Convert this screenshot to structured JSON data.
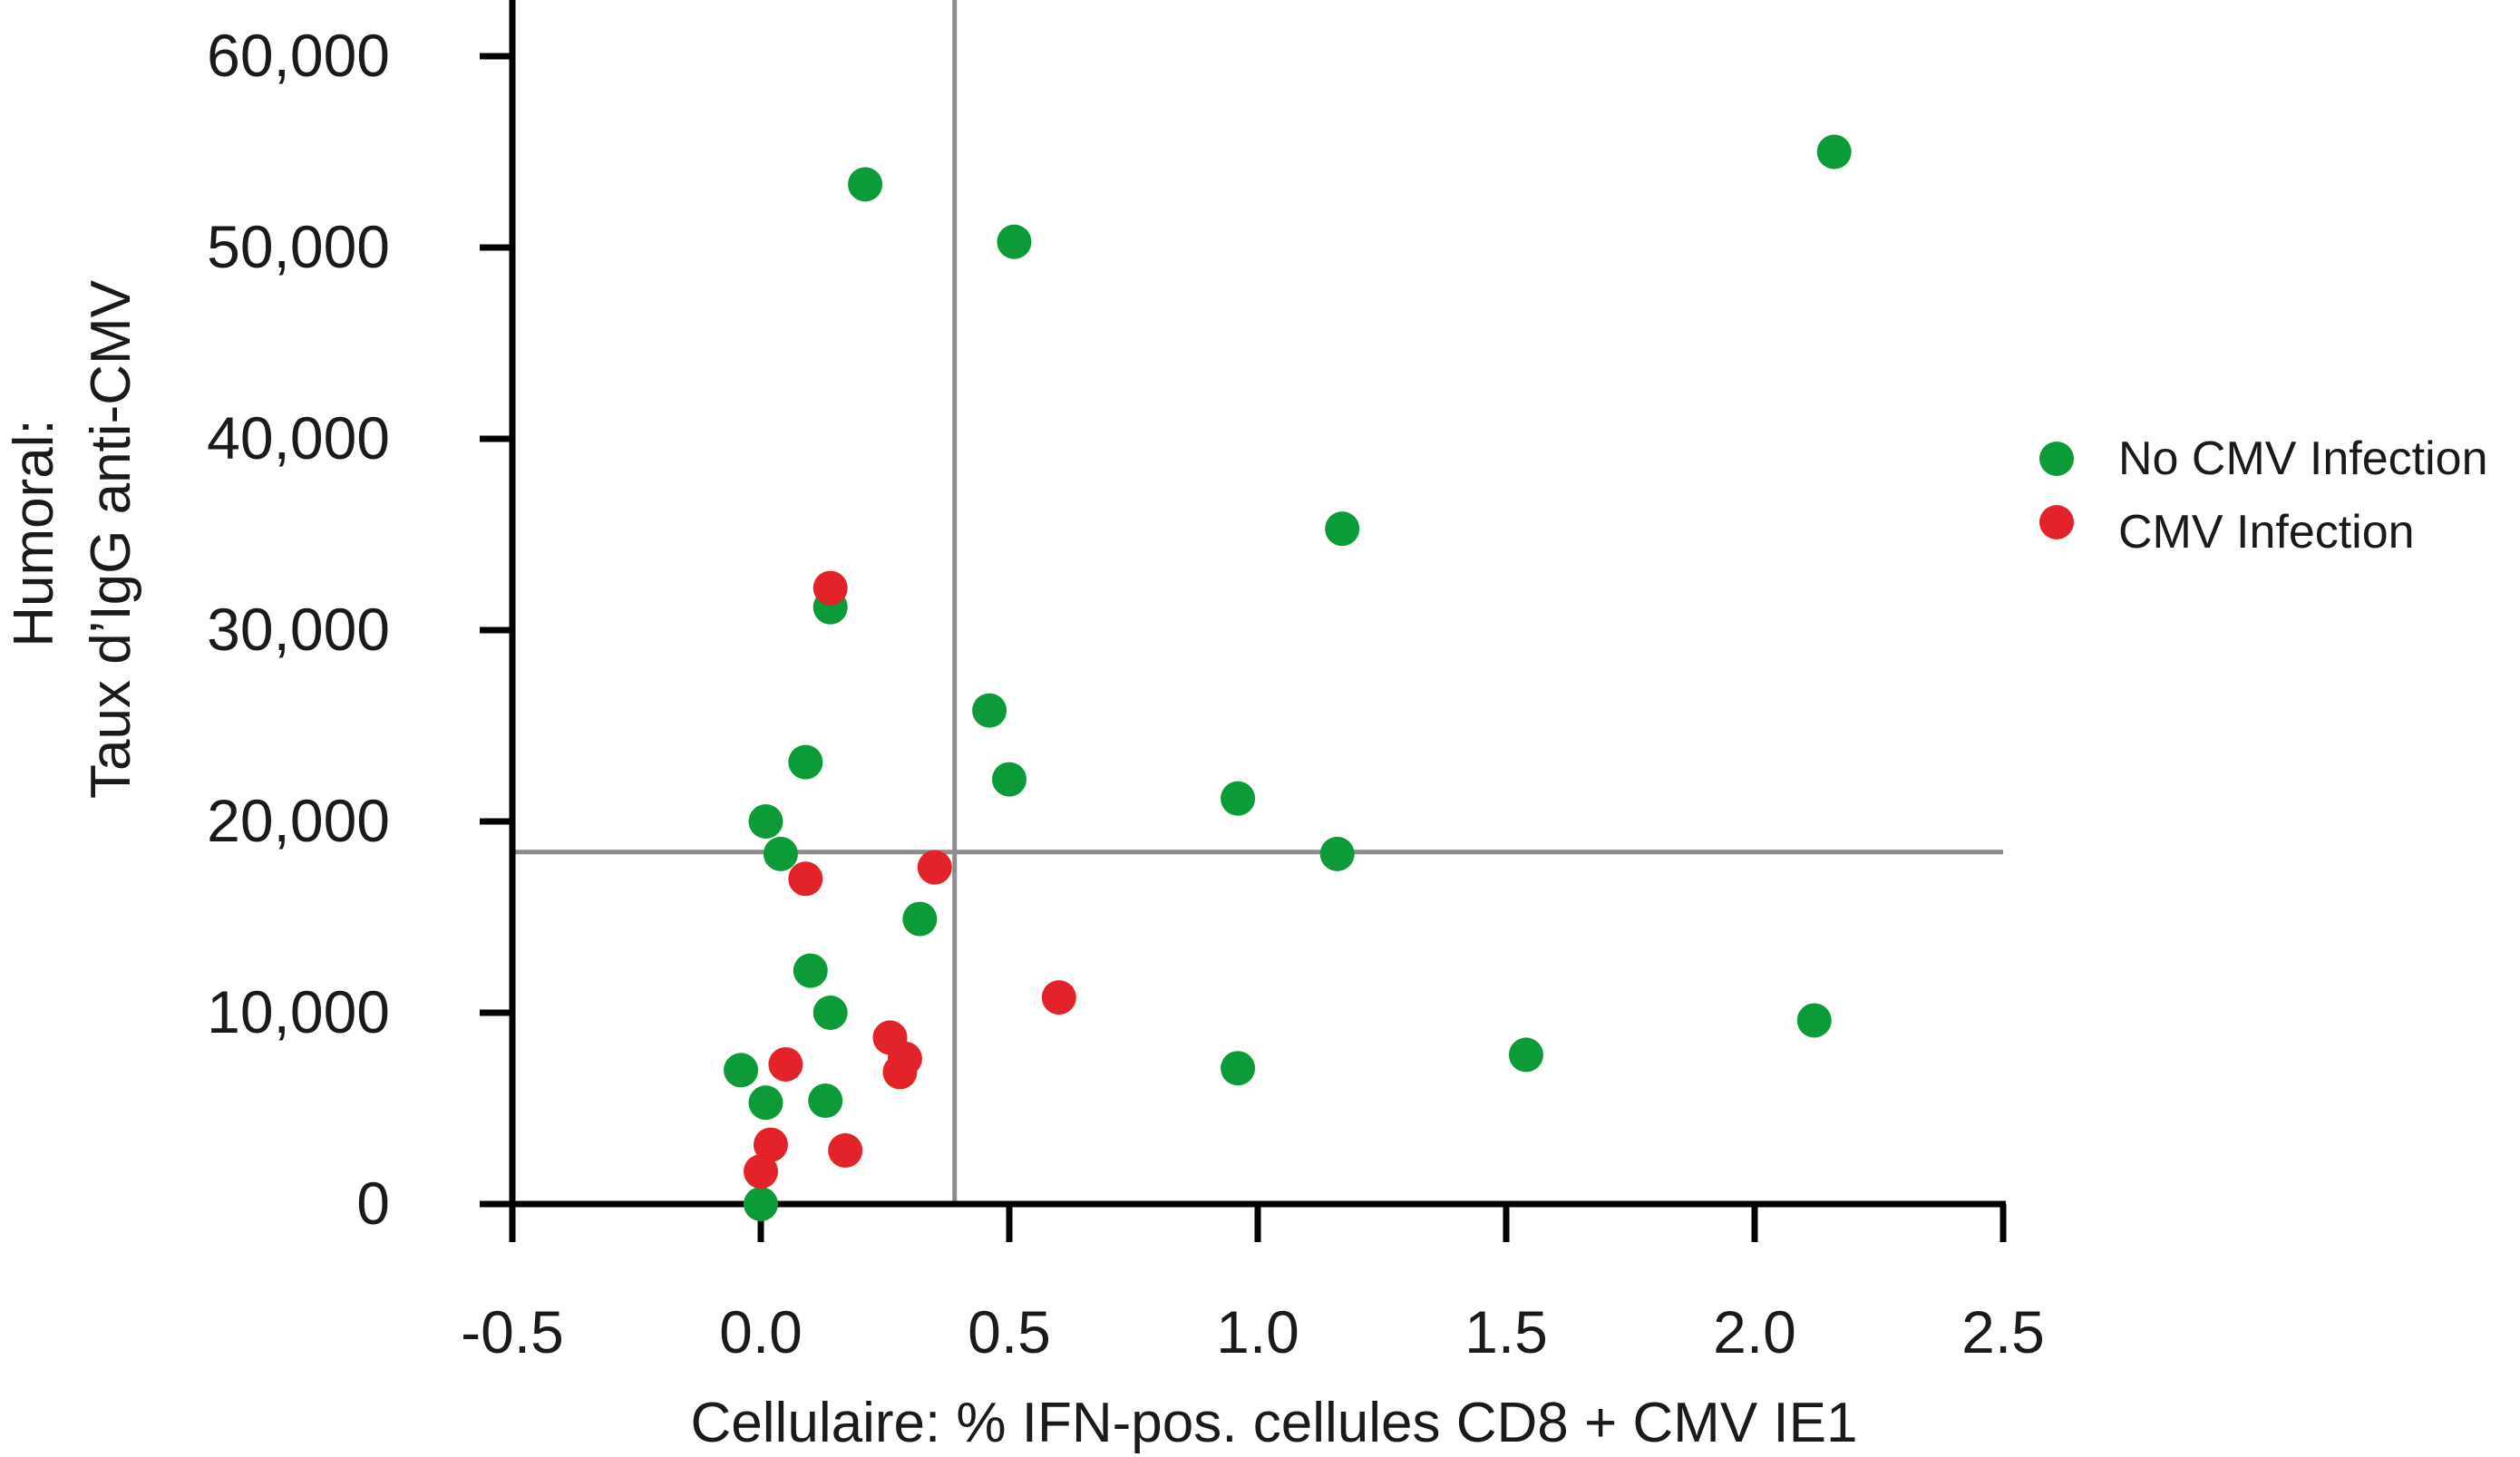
{
  "chart_data": {
    "type": "scatter",
    "xlabel": "Cellulaire: % IFN-pos. cellules CD8 + CMV IE1",
    "ylabel_lines": [
      "Humoral:",
      "Taux d’IgG anti-CMV"
    ],
    "xlim": [
      -0.5,
      2.5
    ],
    "ylim": [
      0,
      60000
    ],
    "x_ticks": [
      -0.5,
      0.0,
      0.5,
      1.0,
      1.5,
      2.0,
      2.5
    ],
    "x_tick_labels": [
      "-0.5",
      "0.0",
      "0.5",
      "1.0",
      "1.5",
      "2.0",
      "2.5"
    ],
    "y_ticks": [
      0,
      10000,
      20000,
      30000,
      40000,
      50000,
      60000
    ],
    "y_tick_labels": [
      "0",
      "10,000",
      "20,000",
      "30,000",
      "40,000",
      "50,000",
      "60,000"
    ],
    "reference_lines": {
      "x": 0.39,
      "y": 18400
    },
    "grid": false,
    "legend_position": "right",
    "series": [
      {
        "name": "No CMV Infection",
        "color": "#0d9b3a",
        "points": [
          [
            0.21,
            53300
          ],
          [
            0.51,
            50300
          ],
          [
            2.16,
            55000
          ],
          [
            1.17,
            35300
          ],
          [
            0.14,
            31200
          ],
          [
            0.46,
            25800
          ],
          [
            0.5,
            22200
          ],
          [
            0.09,
            23100
          ],
          [
            0.96,
            21200
          ],
          [
            1.16,
            18300
          ],
          [
            0.01,
            20000
          ],
          [
            0.04,
            18300
          ],
          [
            0.32,
            14900
          ],
          [
            0.1,
            12200
          ],
          [
            0.14,
            10000
          ],
          [
            2.12,
            9600
          ],
          [
            1.54,
            7800
          ],
          [
            0.96,
            7100
          ],
          [
            -0.04,
            7000
          ],
          [
            0.01,
            5300
          ],
          [
            0.13,
            5400
          ],
          [
            0.0,
            0
          ]
        ]
      },
      {
        "name": "CMV Infection",
        "color": "#e2232a",
        "points": [
          [
            0.14,
            32200
          ],
          [
            0.35,
            17600
          ],
          [
            0.09,
            17000
          ],
          [
            0.6,
            10800
          ],
          [
            0.26,
            8700
          ],
          [
            0.29,
            7600
          ],
          [
            0.28,
            6900
          ],
          [
            0.05,
            7300
          ],
          [
            0.02,
            3100
          ],
          [
            0.17,
            2800
          ],
          [
            0.0,
            1700
          ]
        ]
      }
    ]
  }
}
